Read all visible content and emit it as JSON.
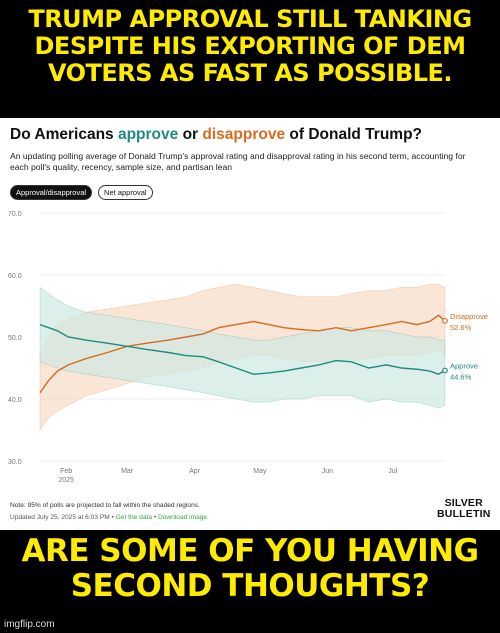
{
  "meme": {
    "top_lines": [
      "Trump approval still tanking",
      "despite his exporting of dem",
      "voters as fast as possible."
    ],
    "bottom_lines": [
      "Are some of you having",
      "second thoughts?"
    ]
  },
  "header": {
    "title_prefix": "Do Americans ",
    "title_approve": "approve",
    "title_or": " or ",
    "title_disapprove": "disapprove",
    "title_suffix": " of Donald Trump?",
    "subtitle": "An updating polling average of Donald Trump's approval rating and disapproval rating in his second term, accounting for each poll's quality, recency, sample size, and partisan lean"
  },
  "toggles": {
    "approval_disapproval": "Approval/disapproval",
    "net_approval": "Net approval"
  },
  "footer": {
    "note": "Note: 95% of polls are projected to fall within the shaded regions.",
    "updated": "Updated July 25, 2025 at 6:03 PM",
    "separator": " • ",
    "get_data": "Get the data",
    "download": "Download image",
    "brand_line1": "SILVER",
    "brand_line2": "BULLETIN"
  },
  "watermark": "imgflip.com",
  "colors": {
    "approve": "#1f8a80",
    "disapprove": "#d96a1e",
    "approve_band": "#cfe8e3",
    "disapprove_band": "#f8dcc6"
  },
  "chart_data": {
    "type": "line",
    "x_tick_labels": [
      "Feb\n2025",
      "Mar",
      "Apr",
      "May",
      "Jun",
      "Jul"
    ],
    "x_ticks": [
      "2025-02-01",
      "2025-03-01",
      "2025-04-01",
      "2025-05-01",
      "2025-06-01",
      "2025-07-01"
    ],
    "x_range": [
      "2025-01-20",
      "2025-07-25"
    ],
    "y_ticks": [
      30.0,
      40.0,
      50.0,
      60.0,
      70.0
    ],
    "y_tick_labels": [
      "30.0",
      "40.0",
      "50.0",
      "60.0",
      "70.0"
    ],
    "ylim": [
      30,
      70
    ],
    "grid": true,
    "series": [
      {
        "name": "Disapprove",
        "end_label": "52.6%",
        "x": [
          "2025-01-20",
          "2025-01-24",
          "2025-01-28",
          "2025-02-02",
          "2025-02-10",
          "2025-02-20",
          "2025-03-01",
          "2025-03-10",
          "2025-03-20",
          "2025-03-28",
          "2025-04-05",
          "2025-04-12",
          "2025-04-20",
          "2025-04-28",
          "2025-05-05",
          "2025-05-12",
          "2025-05-20",
          "2025-05-28",
          "2025-06-05",
          "2025-06-12",
          "2025-06-20",
          "2025-06-28",
          "2025-07-05",
          "2025-07-12",
          "2025-07-18",
          "2025-07-22",
          "2025-07-25"
        ],
        "values": [
          41.0,
          43.0,
          44.5,
          45.5,
          46.5,
          47.5,
          48.5,
          49.0,
          49.5,
          50.0,
          50.5,
          51.5,
          52.0,
          52.5,
          52.0,
          51.5,
          51.2,
          51.0,
          51.5,
          51.0,
          51.5,
          52.0,
          52.5,
          52.0,
          52.5,
          53.5,
          52.6
        ],
        "band_upper": [
          47.0,
          50.0,
          52.0,
          53.0,
          54.0,
          54.5,
          55.0,
          55.5,
          56.0,
          56.5,
          57.5,
          58.0,
          58.5,
          58.0,
          57.5,
          57.0,
          56.5,
          56.5,
          56.5,
          57.0,
          57.5,
          57.5,
          58.0,
          58.0,
          58.5,
          58.5,
          58.0
        ],
        "band_lower": [
          35.0,
          37.0,
          38.0,
          39.0,
          40.5,
          41.5,
          42.5,
          43.5,
          44.0,
          44.5,
          45.0,
          46.0,
          46.5,
          47.0,
          47.0,
          46.5,
          46.0,
          46.0,
          46.0,
          46.0,
          46.5,
          47.0,
          47.0,
          47.0,
          47.5,
          48.0,
          47.0
        ]
      },
      {
        "name": "Approve",
        "end_label": "44.6%",
        "x": [
          "2025-01-20",
          "2025-01-24",
          "2025-01-28",
          "2025-02-02",
          "2025-02-10",
          "2025-02-20",
          "2025-03-01",
          "2025-03-10",
          "2025-03-20",
          "2025-03-28",
          "2025-04-05",
          "2025-04-12",
          "2025-04-20",
          "2025-04-28",
          "2025-05-05",
          "2025-05-12",
          "2025-05-20",
          "2025-05-28",
          "2025-06-05",
          "2025-06-12",
          "2025-06-20",
          "2025-06-28",
          "2025-07-05",
          "2025-07-12",
          "2025-07-18",
          "2025-07-22",
          "2025-07-25"
        ],
        "values": [
          52.0,
          51.5,
          51.0,
          50.0,
          49.5,
          49.0,
          48.5,
          48.0,
          47.5,
          47.0,
          46.8,
          46.0,
          45.0,
          44.0,
          44.2,
          44.5,
          45.0,
          45.5,
          46.2,
          46.0,
          45.0,
          45.5,
          45.0,
          44.8,
          44.5,
          44.0,
          44.6
        ],
        "band_upper": [
          58.0,
          57.0,
          56.0,
          55.0,
          54.0,
          53.5,
          53.0,
          52.5,
          52.0,
          51.5,
          51.0,
          50.5,
          50.0,
          49.5,
          49.5,
          50.0,
          50.5,
          51.0,
          51.5,
          51.5,
          51.0,
          51.0,
          50.5,
          50.0,
          50.0,
          49.5,
          49.5
        ],
        "band_lower": [
          46.0,
          45.5,
          45.0,
          44.5,
          44.0,
          43.5,
          43.0,
          42.5,
          42.0,
          41.5,
          41.0,
          40.5,
          40.0,
          39.5,
          39.5,
          40.0,
          40.0,
          40.5,
          40.5,
          40.5,
          39.5,
          40.0,
          39.5,
          39.5,
          39.0,
          38.5,
          39.0
        ]
      }
    ]
  }
}
